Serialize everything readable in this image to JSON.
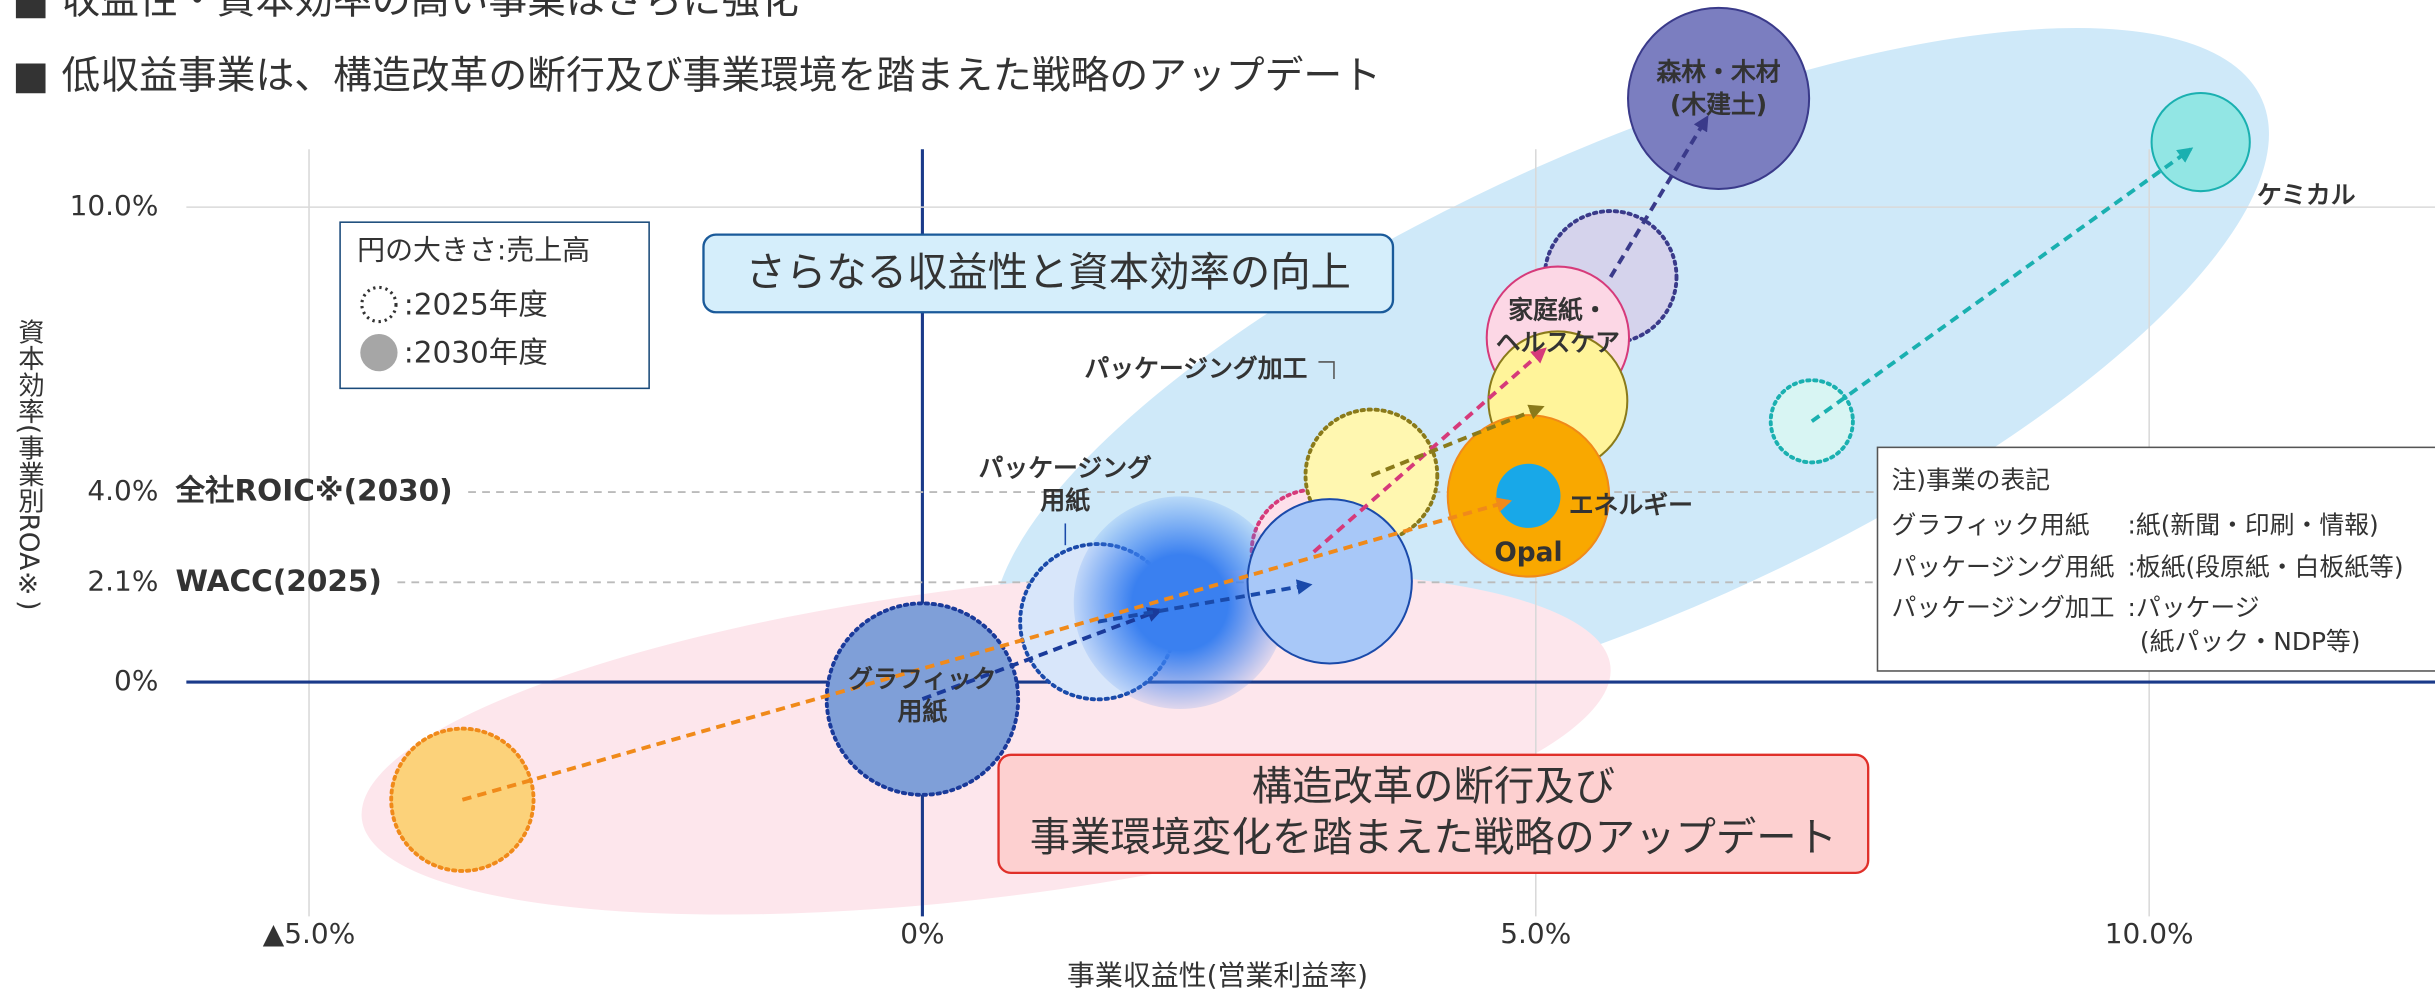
{
  "header": {
    "bullets": [
      "■ 収益性・資本効率の高い事業はさらに強化",
      "■ 低収益事業は、構造改革の断行及び事業環境を踏まえた戦略のアップデート"
    ]
  },
  "legend": {
    "title": "円の大きさ:売上高",
    "items": [
      ":2025年度",
      ":2030年度"
    ]
  },
  "callouts": [
    [
      "さらなる収益性と資本効率の向上"
    ],
    [
      "構造改革の断行及び",
      "事業環境変化を踏まえた戦略のアップデート"
    ]
  ],
  "note": {
    "title": "注)事業の表記",
    "rows": [
      [
        "グラフィック用紙",
        ":紙(新聞・印刷・情報)"
      ],
      [
        "パッケージング用紙",
        ":板紙(段原紙・白板紙等)"
      ],
      [
        "パッケージング加工",
        ":パッケージ",
        "(紙パック・NDP等)"
      ]
    ]
  },
  "chart_data": {
    "type": "bubble",
    "x_label": "事業収益性(営業利益率)",
    "y_label": "資本効率(事業別ROA※)",
    "xlim": [
      -6,
      12.33
    ],
    "ylim": [
      -5,
      14
    ],
    "xticks": [
      {
        "value": -5,
        "label": "▲5.0%"
      },
      {
        "value": 0,
        "label": "0%"
      },
      {
        "value": 5,
        "label": "5.0%"
      },
      {
        "value": 10,
        "label": "10.0%"
      }
    ],
    "yticks": [
      {
        "value": 10,
        "label": "10.0%"
      },
      {
        "value": 4,
        "label": "4.0%"
      },
      {
        "value": 2.1,
        "label": "2.1%"
      },
      {
        "value": 0,
        "label": "0%"
      }
    ],
    "reference_lines": [
      {
        "value": 4,
        "label": "全社ROIC※(2030)"
      },
      {
        "value": 2.1,
        "label": "WACC(2025)"
      }
    ],
    "grid": true,
    "businesses": [
      {
        "label": [
          "グラフィック",
          "用紙"
        ],
        "color": "#1a3a9a",
        "fill": [
          "#7f9fd8",
          "#3a80f0"
        ],
        "x": [
          0.0,
          2.1
        ],
        "y": [
          -0.36,
          1.67
        ],
        "size": [
          38,
          30
        ]
      },
      {
        "label": [
          "パッケージング",
          "用紙"
        ],
        "color": "#1a4aaa",
        "fill": [
          "#d8e6fa",
          "#a8c8f8"
        ],
        "x": [
          1.43,
          3.32
        ],
        "y": [
          1.27,
          2.12
        ],
        "size": [
          25,
          28
        ]
      },
      {
        "label": [
          "家庭紙・",
          "ヘルスケア"
        ],
        "color": "#d63a7a",
        "fill": [
          "#fde0ea",
          "#fcd7e5"
        ],
        "x": [
          3.19,
          5.18
        ],
        "y": [
          2.74,
          7.25
        ],
        "size": [
          16,
          21
        ]
      },
      {
        "label": [
          "パッケージング加工"
        ],
        "color": "#8a7a1a",
        "fill": [
          "#fff7b0",
          "#fff49a"
        ],
        "x": [
          3.66,
          5.18
        ],
        "y": [
          4.35,
          5.92
        ],
        "size": [
          18,
          20
        ]
      },
      {
        "label": [
          "Opal"
        ],
        "color": "#f08a1a",
        "fill": [
          "#fcd27a",
          "#f9a800"
        ],
        "x": [
          -3.75,
          4.94
        ],
        "y": [
          -2.48,
          3.92
        ],
        "size": [
          21,
          27
        ]
      },
      {
        "label": [
          "エネルギー"
        ],
        "color": "#18a8e8",
        "fill": [
          null,
          "#18a8e8"
        ],
        "x": [
          null,
          4.94
        ],
        "y": [
          null,
          3.92
        ],
        "size": [
          null,
          4
        ]
      },
      {
        "label": [
          "森林・木材",
          "(木建土)"
        ],
        "color": "#3a3a8a",
        "fill": [
          "#d5d3ec",
          "#7b7ec0"
        ],
        "x": [
          5.61,
          6.49
        ],
        "y": [
          8.53,
          12.29
        ],
        "size": [
          18,
          34
        ]
      },
      {
        "label": [
          "ケミカル"
        ],
        "color": "#1ab0b0",
        "fill": [
          "#d8f5f3",
          "#92e6e4"
        ],
        "x": [
          7.25,
          10.42
        ],
        "y": [
          5.49,
          11.37
        ],
        "size": [
          7,
          10
        ]
      }
    ]
  }
}
